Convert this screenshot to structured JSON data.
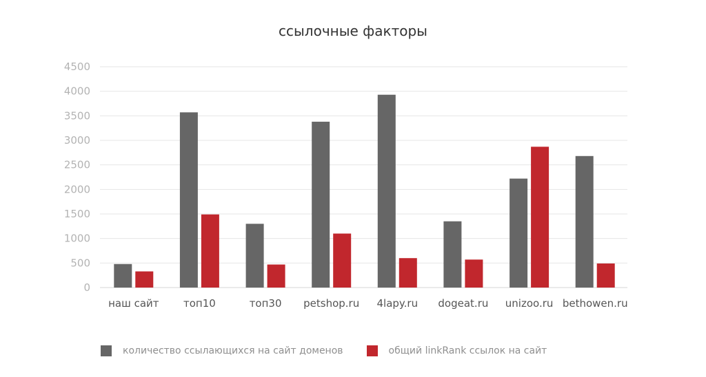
{
  "chart_data": {
    "type": "bar",
    "title": "ссылочные факторы",
    "xlabel": "",
    "ylabel": "",
    "ylim": [
      0,
      4500
    ],
    "yticks": [
      0,
      500,
      1000,
      1500,
      2000,
      2500,
      3000,
      3500,
      4000,
      4500
    ],
    "grid": true,
    "legend_position": "bottom",
    "categories": [
      "наш сайт",
      "топ10",
      "топ30",
      "petshop.ru",
      "4lapy.ru",
      "dogeat.ru",
      "unizoo.ru",
      "bethowen.ru"
    ],
    "series": [
      {
        "name": "количество ссылающихся на сайт доменов",
        "color": "#666666",
        "values": [
          480,
          3570,
          1300,
          3380,
          3930,
          1350,
          2220,
          2680
        ]
      },
      {
        "name": "общий linkRank ссылок на сайт",
        "color": "#c1272d",
        "values": [
          330,
          1490,
          470,
          1100,
          600,
          570,
          2870,
          490
        ]
      }
    ]
  }
}
